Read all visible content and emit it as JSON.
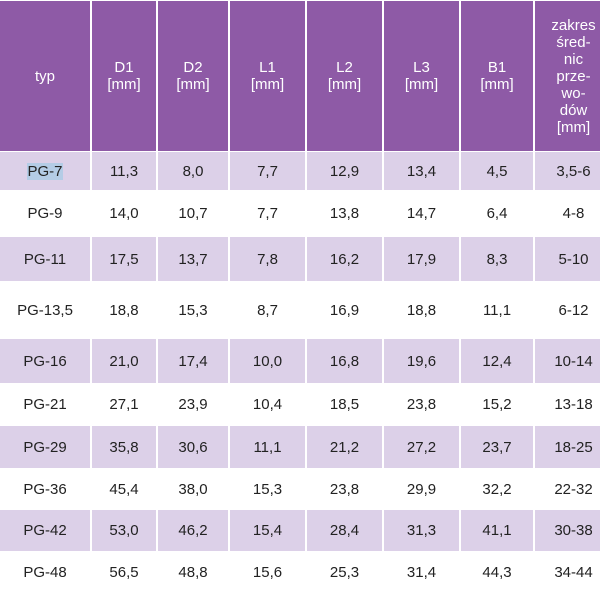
{
  "table": {
    "header": [
      "typ",
      "D1\n[mm]",
      "D2\n[mm]",
      "L1\n[mm]",
      "L2\n[mm]",
      "L3\n[mm]",
      "B1\n[mm]",
      "zakres\nśred-\nnic\nprze-\nwo-\ndów\n[mm]"
    ],
    "rows": [
      [
        "PG-7",
        "11,3",
        "8,0",
        "7,7",
        "12,9",
        "13,4",
        "4,5",
        "3,5-6"
      ],
      [
        "PG-9",
        "14,0",
        "10,7",
        "7,7",
        "13,8",
        "14,7",
        "6,4",
        "4-8"
      ],
      [
        "PG-11",
        "17,5",
        "13,7",
        "7,8",
        "16,2",
        "17,9",
        "8,3",
        "5-10"
      ],
      [
        "PG-13,5",
        "18,8",
        "15,3",
        "8,7",
        "16,9",
        "18,8",
        "11,1",
        "6-12"
      ],
      [
        "PG-16",
        "21,0",
        "17,4",
        "10,0",
        "16,8",
        "19,6",
        "12,4",
        "10-14"
      ],
      [
        "PG-21",
        "27,1",
        "23,9",
        "10,4",
        "18,5",
        "23,8",
        "15,2",
        "13-18"
      ],
      [
        "PG-29",
        "35,8",
        "30,6",
        "11,1",
        "21,2",
        "27,2",
        "23,7",
        "18-25"
      ],
      [
        "PG-36",
        "45,4",
        "38,0",
        "15,3",
        "23,8",
        "29,9",
        "32,2",
        "22-32"
      ],
      [
        "PG-42",
        "53,0",
        "46,2",
        "15,4",
        "28,4",
        "31,3",
        "41,1",
        "30-38"
      ],
      [
        "PG-48",
        "56,5",
        "48,8",
        "15,6",
        "25,3",
        "31,4",
        "44,3",
        "34-44"
      ]
    ]
  }
}
